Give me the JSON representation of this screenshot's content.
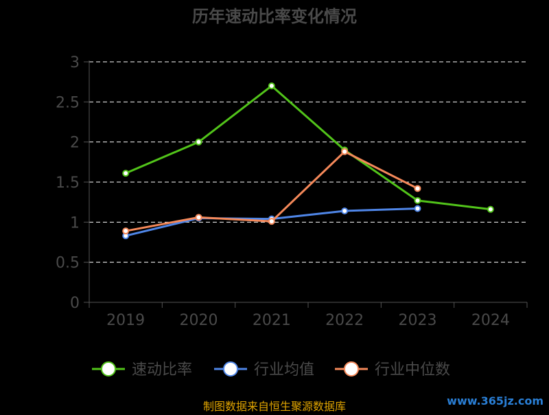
{
  "chart_data": {
    "type": "line",
    "title": "历年速动比率变化情况",
    "categories": [
      "2019",
      "2020",
      "2021",
      "2022",
      "2023",
      "2024"
    ],
    "y_ticks": [
      "0",
      "0.5",
      "1",
      "1.5",
      "2",
      "2.5",
      "3"
    ],
    "ylim": [
      0,
      3
    ],
    "grid": true,
    "legend_position": "bottom",
    "series": [
      {
        "name": "速动比率",
        "color": "#52c41a",
        "values": [
          1.61,
          2.0,
          2.7,
          1.9,
          1.27,
          1.16
        ]
      },
      {
        "name": "行业均值",
        "color": "#4f86e8",
        "values": [
          0.83,
          1.05,
          1.04,
          1.14,
          1.17,
          null
        ]
      },
      {
        "name": "行业中位数",
        "color": "#f5895a",
        "values": [
          0.89,
          1.06,
          1.01,
          1.88,
          1.42,
          null
        ]
      }
    ]
  },
  "footer": {
    "source": "制图数据来自恒生聚源数据库",
    "watermark": "www.365jz.com"
  }
}
